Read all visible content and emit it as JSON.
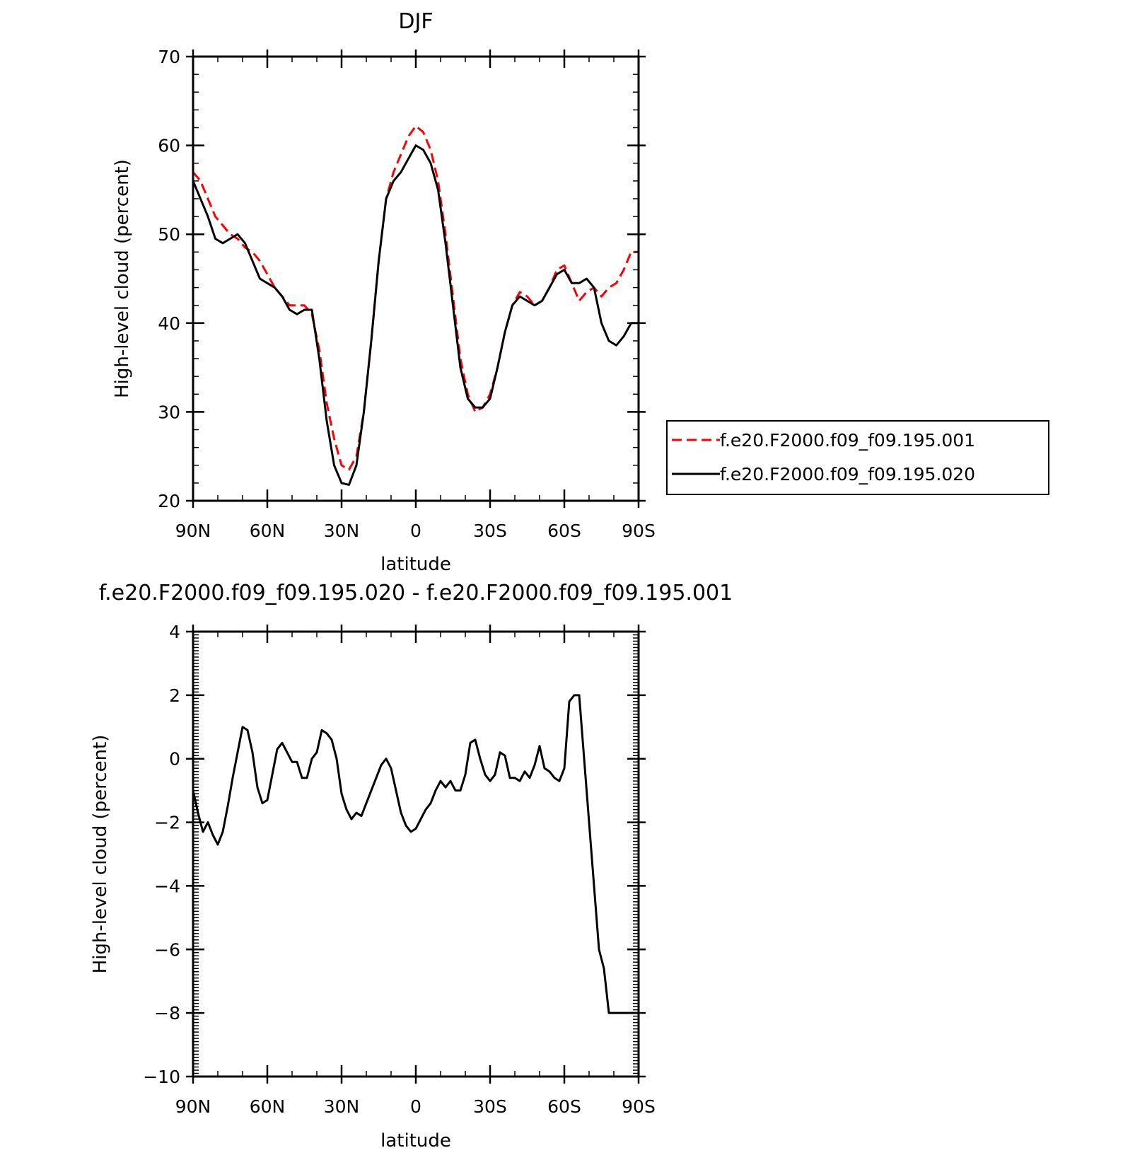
{
  "chart_data": [
    {
      "type": "line",
      "title": "DJF",
      "xlabel": "latitude",
      "ylabel": "High-level cloud (percent)",
      "xlim": [
        90,
        -90
      ],
      "ylim": [
        20,
        70
      ],
      "x_ticks": [
        {
          "value": 90,
          "label": "90N"
        },
        {
          "value": 60,
          "label": "60N"
        },
        {
          "value": 30,
          "label": "30N"
        },
        {
          "value": 0,
          "label": "0"
        },
        {
          "value": -30,
          "label": "30S"
        },
        {
          "value": -60,
          "label": "60S"
        },
        {
          "value": -90,
          "label": "90S"
        }
      ],
      "y_ticks": [
        {
          "value": 20,
          "label": "20"
        },
        {
          "value": 30,
          "label": "30"
        },
        {
          "value": 40,
          "label": "40"
        },
        {
          "value": 50,
          "label": "50"
        },
        {
          "value": 60,
          "label": "60"
        },
        {
          "value": 70,
          "label": "70"
        }
      ],
      "legend_position": "right",
      "series": [
        {
          "name": "f.e20.F2000.f09_f09.195.001",
          "color": "#ff0000",
          "dash": true,
          "x": [
            90,
            87,
            84,
            81,
            78,
            75,
            72,
            69,
            66,
            63,
            60,
            57,
            54,
            51,
            48,
            45,
            42,
            39,
            36,
            33,
            30,
            27,
            24,
            21,
            18,
            15,
            12,
            9,
            6,
            3,
            0,
            -3,
            -6,
            -9,
            -12,
            -15,
            -18,
            -21,
            -24,
            -27,
            -30,
            -33,
            -36,
            -39,
            -42,
            -45,
            -48,
            -51,
            -54,
            -57,
            -60,
            -63,
            -66,
            -69,
            -72,
            -75,
            -78,
            -81,
            -84,
            -87,
            -90
          ],
          "values": [
            57,
            56,
            54,
            52,
            51,
            50,
            49.5,
            48.5,
            48,
            47,
            45.5,
            44,
            43,
            42,
            42,
            42,
            41,
            37,
            31,
            27,
            24,
            23.5,
            25,
            30,
            38,
            47,
            54,
            57,
            59,
            61,
            62.2,
            61.5,
            59.5,
            56,
            50,
            43,
            36,
            32,
            30,
            30.5,
            32,
            35,
            39,
            42,
            43.5,
            43,
            42,
            42.5,
            44,
            46,
            46.5,
            44.5,
            42.5,
            43.5,
            44,
            43,
            44,
            44.5,
            46,
            48,
            48
          ]
        },
        {
          "name": "f.e20.F2000.f09_f09.195.020",
          "color": "#000000",
          "dash": false,
          "x": [
            90,
            87,
            84,
            81,
            78,
            75,
            72,
            69,
            66,
            63,
            60,
            57,
            54,
            51,
            48,
            45,
            42,
            39,
            36,
            33,
            30,
            27,
            24,
            21,
            18,
            15,
            12,
            9,
            6,
            3,
            0,
            -3,
            -6,
            -9,
            -12,
            -15,
            -18,
            -21,
            -24,
            -27,
            -30,
            -33,
            -36,
            -39,
            -42,
            -45,
            -48,
            -51,
            -54,
            -57,
            -60,
            -63,
            -66,
            -69,
            -72,
            -75,
            -78,
            -81,
            -84,
            -87,
            -90
          ],
          "values": [
            56,
            54,
            52,
            49.5,
            49,
            49.5,
            50,
            49,
            47,
            45,
            44.5,
            44,
            43,
            41.5,
            41,
            41.5,
            41.5,
            36,
            29,
            24,
            22,
            21.8,
            24,
            30,
            38,
            47,
            54,
            56,
            57,
            58.5,
            60,
            59.5,
            58,
            55,
            49,
            42,
            35,
            31.5,
            30.5,
            30.5,
            31.5,
            35,
            39,
            42,
            43,
            42.5,
            42,
            42.5,
            44,
            45.5,
            46,
            44.5,
            44.5,
            45,
            44,
            40,
            38,
            37.5,
            38.5,
            40,
            40
          ]
        }
      ]
    },
    {
      "type": "line",
      "title": "f.e20.F2000.f09_f09.195.020 - f.e20.F2000.f09_f09.195.001",
      "xlabel": "latitude",
      "ylabel": "High-level cloud (percent)",
      "xlim": [
        90,
        -90
      ],
      "ylim": [
        -10,
        4
      ],
      "x_ticks": [
        {
          "value": 90,
          "label": "90N"
        },
        {
          "value": 60,
          "label": "60N"
        },
        {
          "value": 30,
          "label": "30N"
        },
        {
          "value": 0,
          "label": "0"
        },
        {
          "value": -30,
          "label": "30S"
        },
        {
          "value": -60,
          "label": "60S"
        },
        {
          "value": -90,
          "label": "90S"
        }
      ],
      "y_ticks": [
        {
          "value": -10,
          "label": "−10"
        },
        {
          "value": -8,
          "label": "−8"
        },
        {
          "value": -6,
          "label": "−6"
        },
        {
          "value": -4,
          "label": "−4"
        },
        {
          "value": -2,
          "label": "−2"
        },
        {
          "value": 0,
          "label": "0"
        },
        {
          "value": 2,
          "label": "2"
        },
        {
          "value": 4,
          "label": "4"
        }
      ],
      "series": [
        {
          "color": "#000000",
          "dash": false,
          "x": [
            90,
            88,
            86,
            84,
            82,
            80,
            78,
            76,
            74,
            72,
            70,
            68,
            66,
            64,
            62,
            60,
            58,
            56,
            54,
            52,
            50,
            48,
            46,
            44,
            42,
            40,
            38,
            36,
            34,
            32,
            30,
            28,
            26,
            24,
            22,
            20,
            18,
            16,
            14,
            12,
            10,
            8,
            6,
            4,
            2,
            0,
            -2,
            -4,
            -6,
            -8,
            -10,
            -12,
            -14,
            -16,
            -18,
            -20,
            -22,
            -24,
            -26,
            -28,
            -30,
            -32,
            -34,
            -36,
            -38,
            -40,
            -42,
            -44,
            -46,
            -48,
            -50,
            -52,
            -54,
            -56,
            -58,
            -60,
            -62,
            -64,
            -66,
            -68,
            -70,
            -72,
            -74,
            -76,
            -78,
            -80,
            -82,
            -84,
            -86,
            -88,
            -90
          ],
          "values": [
            -1,
            -1.7,
            -2.3,
            -2.0,
            -2.4,
            -2.7,
            -2.3,
            -1.5,
            -0.6,
            0.2,
            1.0,
            0.9,
            0.2,
            -0.9,
            -1.4,
            -1.3,
            -0.5,
            0.3,
            0.5,
            0.2,
            -0.1,
            -0.1,
            -0.6,
            -0.6,
            0.0,
            0.2,
            0.9,
            0.8,
            0.6,
            0.0,
            -1.1,
            -1.6,
            -1.9,
            -1.7,
            -1.8,
            -1.4,
            -1.0,
            -0.6,
            -0.2,
            0.0,
            -0.3,
            -1.0,
            -1.7,
            -2.1,
            -2.3,
            -2.2,
            -1.9,
            -1.6,
            -1.4,
            -1.0,
            -0.7,
            -0.9,
            -0.7,
            -1.0,
            -1.0,
            -0.5,
            0.5,
            0.6,
            0.0,
            -0.5,
            -0.7,
            -0.5,
            0.2,
            0.1,
            -0.6,
            -0.6,
            -0.7,
            -0.4,
            -0.6,
            -0.2,
            0.4,
            -0.3,
            -0.4,
            -0.6,
            -0.7,
            -0.3,
            1.8,
            2.0,
            2.0,
            0.0,
            -2.0,
            -4.0,
            -6.0,
            -6.6,
            -8.0,
            -8.0,
            -8.0,
            -8.0,
            -8.0,
            -8.0,
            -8.0
          ]
        }
      ]
    }
  ]
}
